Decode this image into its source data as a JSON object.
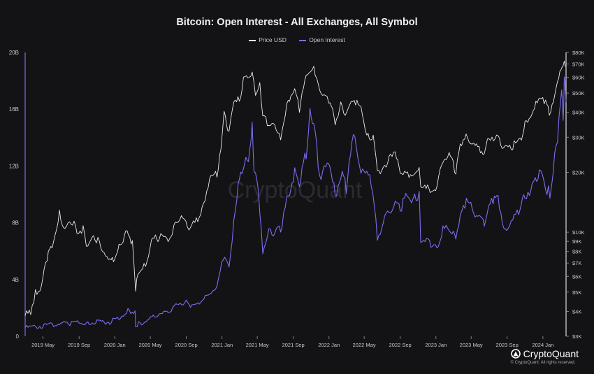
{
  "chart_data": {
    "type": "line",
    "title": "Bitcoin: Open Interest - All Exchanges, All Symbol",
    "watermark": "CryptoQuant",
    "legend": {
      "placement": "top-center"
    },
    "grid": false,
    "x_range": [
      "2019-03-01",
      "2024-03-20"
    ],
    "x_ticks": [
      "2019 May",
      "2019 Sep",
      "2020 Jan",
      "2020 May",
      "2020 Sep",
      "2021 Jan",
      "2021 May",
      "2021 Sep",
      "2022 Jan",
      "2022 May",
      "2022 Sep",
      "2023 Jan",
      "2023 May",
      "2023 Sep",
      "2024 Jan"
    ],
    "left_axis": {
      "ticks": [
        "0",
        "4B",
        "8B",
        "12B",
        "16B",
        "20B"
      ],
      "values": [
        0,
        4,
        8,
        12,
        16,
        20
      ],
      "unit": "B",
      "range": [
        0,
        20
      ]
    },
    "right_axis": {
      "scale": "log",
      "range": [
        3000,
        80000
      ],
      "ticks": [
        "$3K",
        "$4K",
        "$5K",
        "$6K",
        "$7K",
        "$8K",
        "$9K",
        "$10K",
        "$20K",
        "$30K",
        "$40K",
        "$50K",
        "$60K",
        "$70K",
        "$80K"
      ],
      "values": [
        3000,
        4000,
        5000,
        6000,
        7000,
        8000,
        9000,
        10000,
        20000,
        30000,
        40000,
        50000,
        60000,
        70000,
        80000
      ]
    },
    "series": [
      {
        "name": "Price USD",
        "axis": "right",
        "color": "#e8e8ea",
        "points": [
          [
            "2019-03-01",
            3800
          ],
          [
            "2019-03-20",
            4000
          ],
          [
            "2019-04-05",
            5000
          ],
          [
            "2019-04-25",
            5300
          ],
          [
            "2019-05-15",
            7500
          ],
          [
            "2019-06-01",
            8500
          ],
          [
            "2019-06-26",
            12500
          ],
          [
            "2019-07-15",
            10000
          ],
          [
            "2019-08-05",
            11500
          ],
          [
            "2019-08-25",
            10200
          ],
          [
            "2019-09-15",
            10300
          ],
          [
            "2019-10-01",
            8300
          ],
          [
            "2019-10-25",
            9500
          ],
          [
            "2019-11-15",
            8500
          ],
          [
            "2019-12-15",
            7200
          ],
          [
            "2020-01-01",
            7200
          ],
          [
            "2020-01-20",
            8700
          ],
          [
            "2020-02-12",
            10300
          ],
          [
            "2020-03-01",
            8700
          ],
          [
            "2020-03-12",
            5000
          ],
          [
            "2020-03-20",
            6200
          ],
          [
            "2020-04-15",
            6900
          ],
          [
            "2020-05-05",
            9000
          ],
          [
            "2020-06-01",
            9500
          ],
          [
            "2020-07-01",
            9200
          ],
          [
            "2020-07-25",
            11000
          ],
          [
            "2020-08-15",
            11800
          ],
          [
            "2020-09-10",
            10300
          ],
          [
            "2020-10-10",
            11500
          ],
          [
            "2020-10-25",
            13100
          ],
          [
            "2020-11-20",
            18500
          ],
          [
            "2020-12-15",
            19500
          ],
          [
            "2020-12-28",
            27000
          ],
          [
            "2021-01-08",
            40000
          ],
          [
            "2021-01-25",
            32000
          ],
          [
            "2021-02-15",
            48000
          ],
          [
            "2021-03-01",
            46000
          ],
          [
            "2021-03-15",
            58000
          ],
          [
            "2021-04-14",
            63500
          ],
          [
            "2021-04-25",
            51000
          ],
          [
            "2021-05-10",
            57000
          ],
          [
            "2021-05-20",
            37000
          ],
          [
            "2021-06-20",
            35000
          ],
          [
            "2021-07-20",
            30000
          ],
          [
            "2021-08-15",
            46500
          ],
          [
            "2021-09-06",
            52000
          ],
          [
            "2021-09-22",
            42000
          ],
          [
            "2021-10-20",
            64000
          ],
          [
            "2021-11-10",
            68000
          ],
          [
            "2021-12-05",
            49000
          ],
          [
            "2021-12-31",
            46500
          ],
          [
            "2022-01-22",
            36000
          ],
          [
            "2022-02-10",
            44000
          ],
          [
            "2022-02-25",
            38500
          ],
          [
            "2022-03-28",
            47000
          ],
          [
            "2022-04-25",
            39500
          ],
          [
            "2022-05-10",
            30000
          ],
          [
            "2022-06-01",
            30000
          ],
          [
            "2022-06-15",
            21000
          ],
          [
            "2022-06-25",
            20500
          ],
          [
            "2022-07-30",
            23800
          ],
          [
            "2022-08-15",
            24300
          ],
          [
            "2022-09-01",
            20000
          ],
          [
            "2022-10-01",
            19300
          ],
          [
            "2022-11-05",
            21000
          ],
          [
            "2022-11-10",
            16500
          ],
          [
            "2022-12-31",
            16500
          ],
          [
            "2023-01-20",
            22500
          ],
          [
            "2023-02-15",
            24500
          ],
          [
            "2023-03-10",
            20000
          ],
          [
            "2023-03-25",
            28000
          ],
          [
            "2023-04-14",
            30500
          ],
          [
            "2023-05-10",
            27500
          ],
          [
            "2023-06-15",
            25000
          ],
          [
            "2023-07-01",
            30500
          ],
          [
            "2023-08-01",
            29200
          ],
          [
            "2023-08-20",
            26000
          ],
          [
            "2023-09-15",
            26500
          ],
          [
            "2023-10-20",
            30000
          ],
          [
            "2023-11-01",
            35000
          ],
          [
            "2023-12-08",
            44000
          ],
          [
            "2024-01-10",
            46500
          ],
          [
            "2024-01-23",
            39500
          ],
          [
            "2024-02-15",
            52000
          ],
          [
            "2024-02-28",
            62000
          ],
          [
            "2024-03-05",
            67000
          ],
          [
            "2024-03-14",
            73000
          ],
          [
            "2024-03-20",
            68000
          ]
        ]
      },
      {
        "name": "Open Interest",
        "axis": "left",
        "color": "#7a6ef0",
        "points": [
          [
            "2019-03-01",
            0.6
          ],
          [
            "2019-04-15",
            0.7
          ],
          [
            "2019-06-01",
            0.8
          ],
          [
            "2019-07-01",
            0.9
          ],
          [
            "2019-08-01",
            0.9
          ],
          [
            "2019-09-01",
            1.0
          ],
          [
            "2019-10-01",
            0.9
          ],
          [
            "2019-11-01",
            1.0
          ],
          [
            "2019-12-15",
            1.0
          ],
          [
            "2020-01-15",
            1.3
          ],
          [
            "2020-02-15",
            1.8
          ],
          [
            "2020-03-10",
            1.7
          ],
          [
            "2020-03-12",
            0.8
          ],
          [
            "2020-04-01",
            0.9
          ],
          [
            "2020-05-01",
            1.3
          ],
          [
            "2020-06-01",
            1.5
          ],
          [
            "2020-07-01",
            1.7
          ],
          [
            "2020-08-01",
            2.3
          ],
          [
            "2020-09-01",
            2.4
          ],
          [
            "2020-09-15",
            2.0
          ],
          [
            "2020-10-15",
            2.3
          ],
          [
            "2020-11-15",
            3.0
          ],
          [
            "2020-12-15",
            3.5
          ],
          [
            "2021-01-05",
            5.5
          ],
          [
            "2021-01-25",
            5.0
          ],
          [
            "2021-02-10",
            8.0
          ],
          [
            "2021-02-25",
            10.5
          ],
          [
            "2021-03-10",
            11.5
          ],
          [
            "2021-04-01",
            12.5
          ],
          [
            "2021-04-14",
            14.8
          ],
          [
            "2021-04-20",
            11.5
          ],
          [
            "2021-05-05",
            10.5
          ],
          [
            "2021-05-20",
            6.0
          ],
          [
            "2021-06-10",
            7.5
          ],
          [
            "2021-07-01",
            7.3
          ],
          [
            "2021-07-20",
            7.6
          ],
          [
            "2021-08-15",
            10.0
          ],
          [
            "2021-09-06",
            11.5
          ],
          [
            "2021-09-22",
            10.5
          ],
          [
            "2021-10-15",
            13.0
          ],
          [
            "2021-10-28",
            16.2
          ],
          [
            "2021-11-10",
            14.5
          ],
          [
            "2021-12-05",
            11.0
          ],
          [
            "2021-12-31",
            12.5
          ],
          [
            "2022-01-22",
            10.0
          ],
          [
            "2022-02-15",
            11.5
          ],
          [
            "2022-03-01",
            10.5
          ],
          [
            "2022-03-30",
            14.5
          ],
          [
            "2022-04-15",
            12.0
          ],
          [
            "2022-05-10",
            11.5
          ],
          [
            "2022-05-25",
            11.0
          ],
          [
            "2022-06-15",
            7.0
          ],
          [
            "2022-07-15",
            8.5
          ],
          [
            "2022-08-15",
            9.5
          ],
          [
            "2022-09-01",
            9.0
          ],
          [
            "2022-09-25",
            10.0
          ],
          [
            "2022-10-15",
            9.5
          ],
          [
            "2022-11-05",
            10.0
          ],
          [
            "2022-11-10",
            6.8
          ],
          [
            "2022-12-15",
            6.5
          ],
          [
            "2023-01-15",
            6.5
          ],
          [
            "2023-01-25",
            7.5
          ],
          [
            "2023-02-15",
            7.5
          ],
          [
            "2023-03-10",
            7.0
          ],
          [
            "2023-03-25",
            8.5
          ],
          [
            "2023-04-15",
            9.5
          ],
          [
            "2023-05-10",
            8.8
          ],
          [
            "2023-06-15",
            8.0
          ],
          [
            "2023-06-30",
            9.0
          ],
          [
            "2023-07-15",
            9.5
          ],
          [
            "2023-08-01",
            10.0
          ],
          [
            "2023-08-20",
            7.5
          ],
          [
            "2023-09-15",
            8.0
          ],
          [
            "2023-10-15",
            9.0
          ],
          [
            "2023-11-01",
            10.0
          ],
          [
            "2023-12-01",
            10.5
          ],
          [
            "2023-12-20",
            11.5
          ],
          [
            "2024-01-10",
            10.5
          ],
          [
            "2024-01-25",
            10.0
          ],
          [
            "2024-02-10",
            12.5
          ],
          [
            "2024-02-25",
            15.0
          ],
          [
            "2024-03-05",
            17.5
          ],
          [
            "2024-03-10",
            15.5
          ],
          [
            "2024-03-14",
            18.0
          ],
          [
            "2024-03-20",
            16.5
          ]
        ]
      }
    ]
  },
  "brand": {
    "name": "CryptoQuant",
    "copyright": "© CryptoQuant. All rights reserved."
  }
}
